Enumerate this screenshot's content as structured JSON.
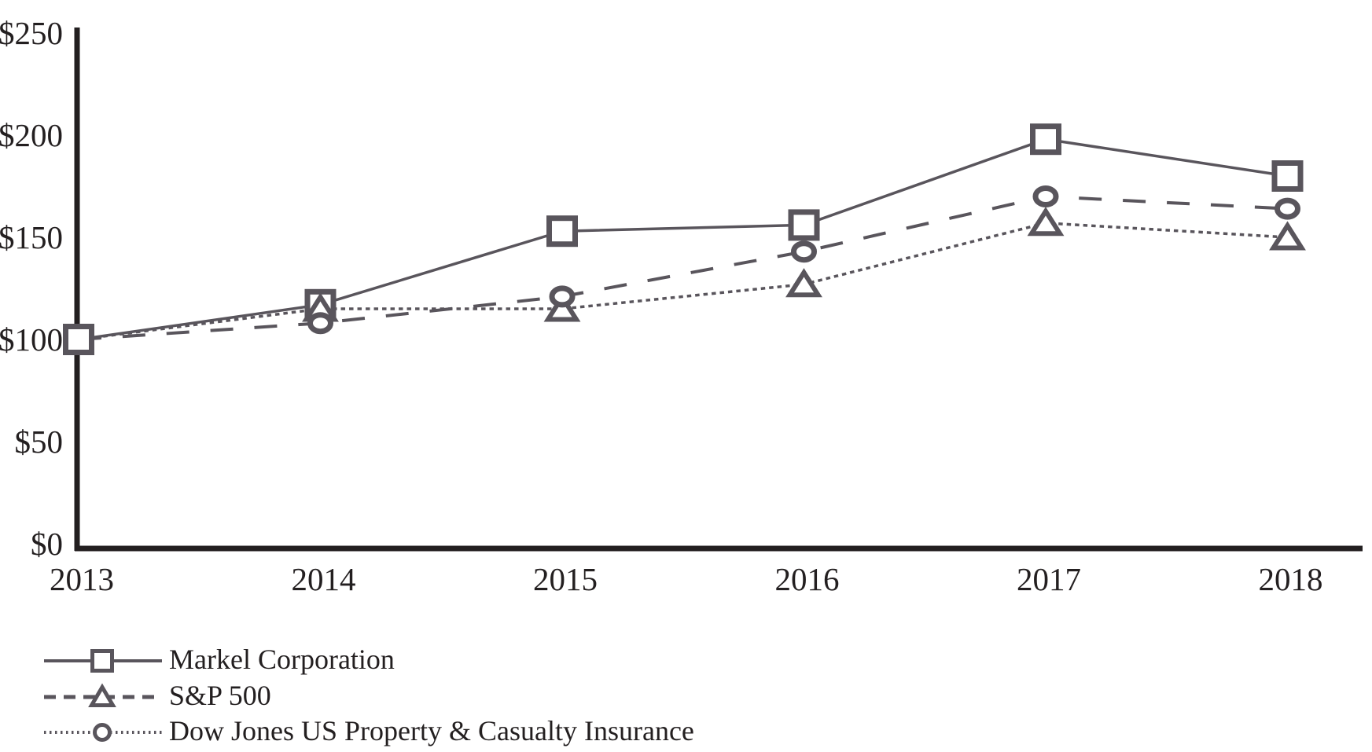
{
  "page": {
    "background": "#ffffff"
  },
  "colors": {
    "series_gray": "#59555c",
    "axis_black": "#231f20",
    "text_black": "#231f20",
    "marker_fill": "#ffffff"
  },
  "chart_data": {
    "type": "line",
    "title": "",
    "xlabel": "",
    "ylabel": "",
    "grid": false,
    "legend_position": "bottom-left",
    "ylim": [
      0,
      250
    ],
    "y_ticks": [
      {
        "label": "$250",
        "value": 250
      },
      {
        "label": "$200",
        "value": 200
      },
      {
        "label": "$150",
        "value": 150
      },
      {
        "label": "$100",
        "value": 100
      },
      {
        "label": "$50",
        "value": 50
      },
      {
        "label": "$0",
        "value": 0
      }
    ],
    "categories": [
      "2013",
      "2014",
      "2015",
      "2016",
      "2017",
      "2018"
    ],
    "series": [
      {
        "name": "Markel Corporation",
        "marker": "square",
        "legend_line": "solid",
        "plot_line": "solid",
        "markers_from_index": 0,
        "values": [
          100,
          117,
          153,
          156,
          198,
          180
        ]
      },
      {
        "name": "S&P 500",
        "marker": "triangle",
        "legend_line": "dashed",
        "plot_line": "dotted",
        "markers_from_index": 1,
        "values": [
          100,
          115,
          115,
          127,
          157,
          150
        ]
      },
      {
        "name": "Dow Jones US Property & Casualty Insurance",
        "marker": "circle",
        "legend_line": "dotted",
        "plot_line": "dashed",
        "markers_from_index": 1,
        "values": [
          100,
          108,
          121,
          143,
          170,
          164
        ]
      }
    ]
  }
}
